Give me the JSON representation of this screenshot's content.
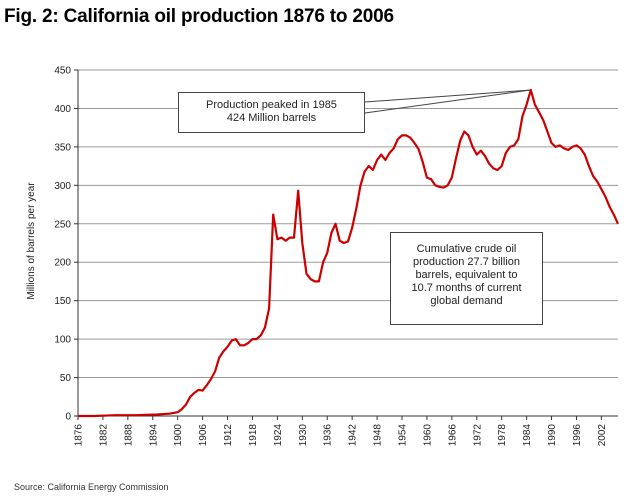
{
  "title": "Fig. 2: California oil production 1876 to 2006",
  "source": "Source: California Energy Commission",
  "annotations": {
    "peak": [
      "Production peaked in 1985",
      "424 Million barrels"
    ],
    "cumulative": [
      "Cumulative crude oil",
      "production 27.7 billion",
      "barrels, equivalent to",
      "10.7 months of current",
      "global demand"
    ]
  },
  "colors": {
    "line": "#cc0000",
    "grid": "#9a9a9a",
    "axis": "#333333"
  },
  "chart_data": {
    "type": "line",
    "title": "Fig. 2: California oil production 1876 to 2006",
    "ylabel": "Millions of barrels per year",
    "xlabel": "",
    "ylim": [
      0,
      450
    ],
    "xlim": [
      1876,
      2006
    ],
    "yticks": [
      0,
      50,
      100,
      150,
      200,
      250,
      300,
      350,
      400,
      450
    ],
    "xticks": [
      "1876",
      "1882",
      "1888",
      "1894",
      "1900",
      "1906",
      "1912",
      "1918",
      "1924",
      "1930",
      "1936",
      "1942",
      "1948",
      "1954",
      "1960",
      "1966",
      "1972",
      "1978",
      "1984",
      "1990",
      "1996",
      "2002"
    ],
    "grid": "horizontal",
    "series": [
      {
        "x": [
          1876,
          1880,
          1885,
          1890,
          1895,
          1898,
          1900,
          1901,
          1902,
          1903,
          1904,
          1905,
          1906,
          1907,
          1908,
          1909,
          1910,
          1911,
          1912,
          1913,
          1914,
          1915,
          1916,
          1917,
          1918,
          1919,
          1920,
          1921,
          1922,
          1923,
          1924,
          1925,
          1926,
          1927,
          1928,
          1929,
          1930,
          1931,
          1932,
          1933,
          1934,
          1935,
          1936,
          1937,
          1938,
          1939,
          1940,
          1941,
          1942,
          1943,
          1944,
          1945,
          1946,
          1947,
          1948,
          1949,
          1950,
          1951,
          1952,
          1953,
          1954,
          1955,
          1956,
          1957,
          1958,
          1959,
          1960,
          1961,
          1962,
          1963,
          1964,
          1965,
          1966,
          1967,
          1968,
          1969,
          1970,
          1971,
          1972,
          1973,
          1974,
          1975,
          1976,
          1977,
          1978,
          1979,
          1980,
          1981,
          1982,
          1983,
          1984,
          1985,
          1986,
          1987,
          1988,
          1989,
          1990,
          1991,
          1992,
          1993,
          1994,
          1995,
          1996,
          1997,
          1998,
          1999,
          2000,
          2001,
          2002,
          2003,
          2004,
          2005,
          2006
        ],
        "y": [
          0,
          0,
          1,
          1,
          2,
          3,
          5,
          9,
          15,
          25,
          30,
          34,
          33,
          40,
          48,
          58,
          76,
          84,
          90,
          98,
          100,
          92,
          92,
          95,
          100,
          100,
          105,
          115,
          140,
          262,
          230,
          232,
          228,
          232,
          232,
          293,
          225,
          185,
          178,
          175,
          175,
          200,
          212,
          238,
          250,
          228,
          225,
          227,
          245,
          270,
          300,
          318,
          325,
          320,
          333,
          340,
          333,
          342,
          348,
          360,
          365,
          365,
          362,
          355,
          347,
          330,
          310,
          308,
          300,
          298,
          297,
          300,
          310,
          335,
          358,
          370,
          365,
          350,
          340,
          345,
          338,
          328,
          322,
          320,
          325,
          342,
          350,
          352,
          360,
          390,
          405,
          424,
          405,
          395,
          385,
          370,
          355,
          350,
          352,
          348,
          346,
          350,
          352,
          348,
          340,
          325,
          312,
          305,
          295,
          285,
          272,
          262,
          250
        ]
      }
    ]
  }
}
